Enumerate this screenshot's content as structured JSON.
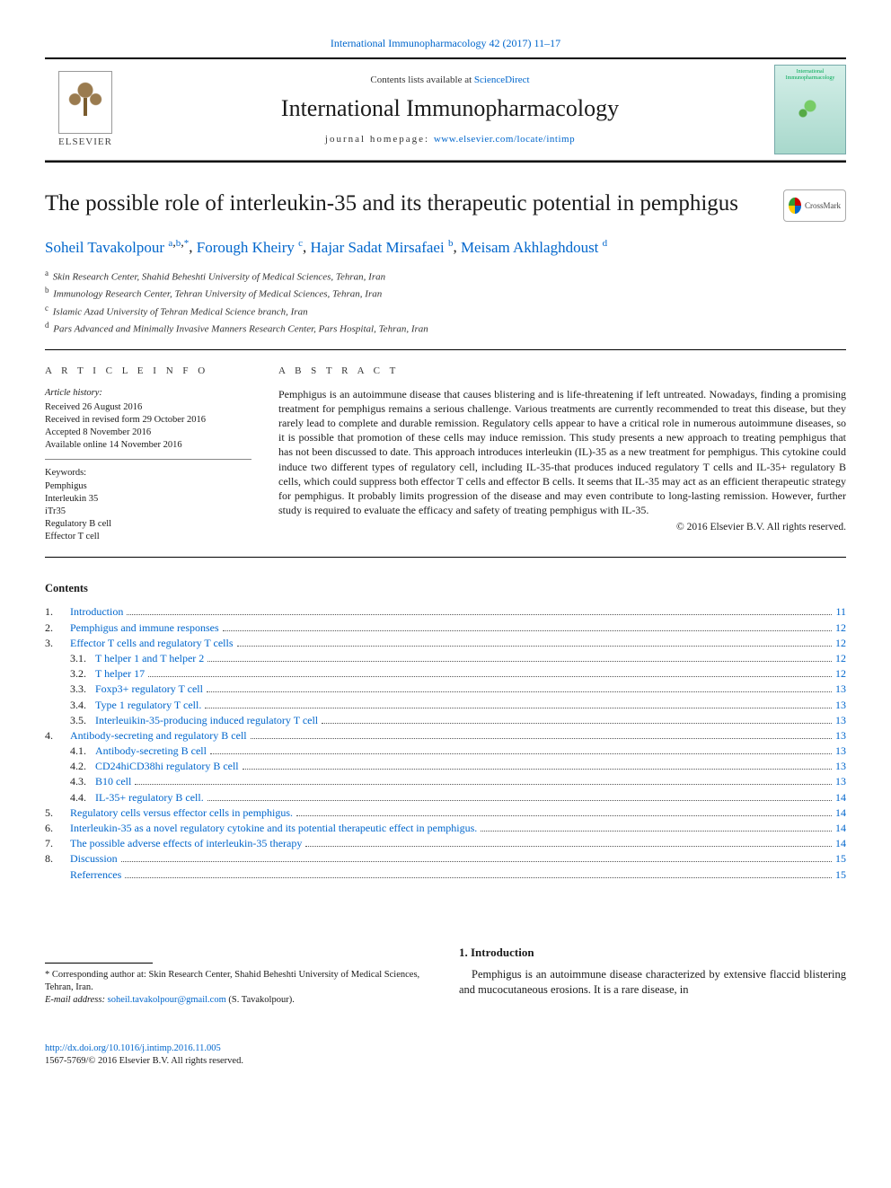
{
  "journal_ref": {
    "name": "International Immunopharmacology",
    "citation": "42 (2017) 11–17"
  },
  "header": {
    "contents_label": "Contents lists available at",
    "contents_link": "ScienceDirect",
    "journal_name": "International Immunopharmacology",
    "homepage_label": "journal homepage:",
    "homepage_url": "www.elsevier.com/locate/intimp",
    "publisher": "ELSEVIER",
    "cover_caption": "International Immunopharmacology"
  },
  "crossmark_label": "CrossMark",
  "title": "The possible role of interleukin-35 and its therapeutic potential in pemphigus",
  "authors": [
    {
      "name": "Soheil Tavakolpour",
      "marks": "a,b,*"
    },
    {
      "name": "Forough Kheiry",
      "marks": "c"
    },
    {
      "name": "Hajar Sadat Mirsafaei",
      "marks": "b"
    },
    {
      "name": "Meisam Akhlaghdoust",
      "marks": "d"
    }
  ],
  "affiliations": [
    {
      "mark": "a",
      "text": "Skin Research Center, Shahid Beheshti University of Medical Sciences, Tehran, Iran"
    },
    {
      "mark": "b",
      "text": "Immunology Research Center, Tehran University of Medical Sciences, Tehran, Iran"
    },
    {
      "mark": "c",
      "text": "Islamic Azad University of Tehran Medical Science branch, Iran"
    },
    {
      "mark": "d",
      "text": "Pars Advanced and Minimally Invasive Manners Research Center, Pars Hospital, Tehran, Iran"
    }
  ],
  "article_info": {
    "heading": "A R T I C L E   I N F O",
    "history_label": "Article history:",
    "history": [
      "Received 26 August 2016",
      "Received in revised form 29 October 2016",
      "Accepted 8 November 2016",
      "Available online 14 November 2016"
    ],
    "keywords_label": "Keywords:",
    "keywords": [
      "Pemphigus",
      "Interleukin 35",
      "iTr35",
      "Regulatory B cell",
      "Effector T cell"
    ]
  },
  "abstract": {
    "heading": "A B S T R A C T",
    "body": "Pemphigus is an autoimmune disease that causes blistering and is life-threatening if left untreated. Nowadays, finding a promising treatment for pemphigus remains a serious challenge. Various treatments are currently recommended to treat this disease, but they rarely lead to complete and durable remission. Regulatory cells appear to have a critical role in numerous autoimmune diseases, so it is possible that promotion of these cells may induce remission. This study presents a new approach to treating pemphigus that has not been discussed to date. This approach introduces interleukin (IL)-35 as a new treatment for pemphigus. This cytokine could induce two different types of regulatory cell, including IL-35-that produces induced regulatory T cells and IL-35+ regulatory B cells, which could suppress both effector T cells and effector B cells. It seems that IL-35 may act as an efficient therapeutic strategy for pemphigus. It probably limits progression of the disease and may even contribute to long-lasting remission. However, further study is required to evaluate the efficacy and safety of treating pemphigus with IL-35.",
    "copyright": "© 2016 Elsevier B.V. All rights reserved."
  },
  "contents_heading": "Contents",
  "toc": [
    {
      "num": "1.",
      "title": "Introduction",
      "page": "11",
      "indent": 0
    },
    {
      "num": "2.",
      "title": "Pemphigus and immune responses",
      "page": "12",
      "indent": 0
    },
    {
      "num": "3.",
      "title": "Effector T cells and regulatory T cells",
      "page": "12",
      "indent": 0
    },
    {
      "num": "3.1.",
      "title": "T helper 1 and T helper 2",
      "page": "12",
      "indent": 1
    },
    {
      "num": "3.2.",
      "title": "T helper 17",
      "page": "12",
      "indent": 1
    },
    {
      "num": "3.3.",
      "title": "Foxp3+ regulatory T cell",
      "page": "13",
      "indent": 1
    },
    {
      "num": "3.4.",
      "title": "Type 1 regulatory T cell.",
      "page": "13",
      "indent": 1
    },
    {
      "num": "3.5.",
      "title": "Interleuikin-35-producing induced regulatory T cell",
      "page": "13",
      "indent": 1
    },
    {
      "num": "4.",
      "title": "Antibody-secreting and regulatory B cell",
      "page": "13",
      "indent": 0
    },
    {
      "num": "4.1.",
      "title": "Antibody-secreting B cell",
      "page": "13",
      "indent": 1
    },
    {
      "num": "4.2.",
      "title": "CD24hiCD38hi regulatory B cell",
      "page": "13",
      "indent": 1
    },
    {
      "num": "4.3.",
      "title": "B10 cell",
      "page": "13",
      "indent": 1
    },
    {
      "num": "4.4.",
      "title": "IL-35+ regulatory B cell.",
      "page": "14",
      "indent": 1
    },
    {
      "num": "5.",
      "title": "Regulatory cells versus effector cells in pemphigus.",
      "page": "14",
      "indent": 0
    },
    {
      "num": "6.",
      "title": "Interleukin-35 as a novel regulatory cytokine and its potential therapeutic effect in pemphigus.",
      "page": "14",
      "indent": 0
    },
    {
      "num": "7.",
      "title": "The possible adverse effects of interleukin-35 therapy",
      "page": "14",
      "indent": 0
    },
    {
      "num": "8.",
      "title": "Discussion",
      "page": "15",
      "indent": 0
    },
    {
      "num": "",
      "title": "Referrences",
      "page": "15",
      "indent": 0
    }
  ],
  "intro": {
    "heading": "1. Introduction",
    "para": "Pemphigus is an autoimmune disease characterized by extensive flaccid blistering and mucocutaneous erosions. It is a rare disease, in"
  },
  "footnote": {
    "corresponding": "* Corresponding author at: Skin Research Center, Shahid Beheshti University of Medical Sciences, Tehran, Iran.",
    "email_label": "E-mail address:",
    "email": "soheil.tavakolpour@gmail.com",
    "email_author": "(S. Tavakolpour)."
  },
  "footer": {
    "doi": "http://dx.doi.org/10.1016/j.intimp.2016.11.005",
    "issn_line": "1567-5769/© 2016 Elsevier B.V. All rights reserved."
  },
  "colors": {
    "link": "#0066cc",
    "text": "#1a1a1a",
    "rule": "#000000"
  }
}
